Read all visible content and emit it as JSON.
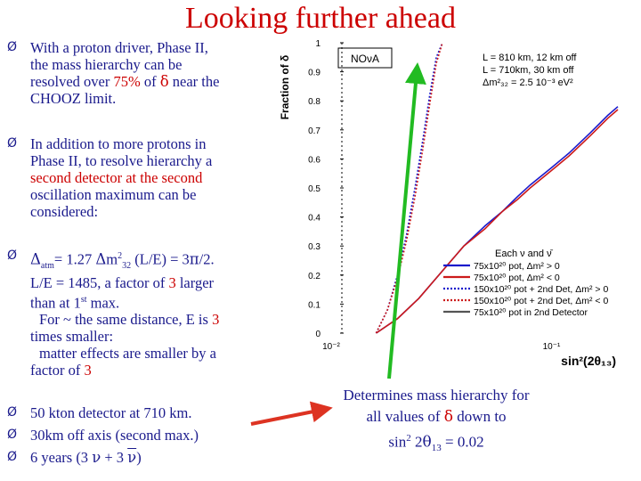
{
  "slide": {
    "title": "Looking further ahead"
  },
  "bullets": [
    {
      "lines": [
        "With a proton driver, Phase II,",
        "the mass hierarchy can be",
        "resolved over ",
        "75%",
        " of ",
        "δ",
        " near the",
        "CHOOZ limit."
      ]
    },
    {
      "l1": "In addition to more protons in",
      "l2": "Phase II, to resolve hierarchy a",
      "l3": "second detector at the second",
      "l4": "oscillation maximum can be",
      "l5": "considered:"
    },
    {
      "l1a": "Δ",
      "l1b": "atm",
      "l1c": "= 1.27 ",
      "l1d": "Δ",
      "l1e": "m",
      "l1f": "2",
      "l1g": "32",
      "l1h": " (L/E) = 3",
      "l1i": "π",
      "l1j": "/2.",
      "l2a": "L/E = 1485, a factor of ",
      "l2b": "3",
      "l2c": " larger",
      "l3a": "than at 1",
      "l3b": "st",
      "l3c": " max.",
      "l4": "For ~ the same distance, E is ",
      "l4b": "3",
      "l5": "times smaller:",
      "l6": "matter effects are smaller by a",
      "l7a": "factor of ",
      "l7b": "3"
    },
    {
      "text": "50 kton detector at 710 km."
    },
    {
      "text": "30km off axis (second max.)"
    },
    {
      "a": "6 years  (3 ",
      "nu": "ν",
      "b": " + 3 ",
      "nubar": "ν",
      "c": ")"
    }
  ],
  "bullet_marker": "Ø",
  "determines_note": {
    "l1": "Determines mass hierarchy for",
    "l2a": "all values of ",
    "l2b": "δ",
    "l2c": " down to",
    "l3a": "sin",
    "l3b": "2",
    "l3c": " 2",
    "l3d": "θ",
    "l3e": "13",
    "l3f": " = 0.02"
  },
  "colors": {
    "title": "#cc0000",
    "text": "#1a1a8c",
    "highlight": "#cc0000",
    "arrow_green": "#22bb22",
    "arrow_red": "#dd3322",
    "series_blue": "#1a1acc",
    "series_red": "#cc1a1a"
  },
  "chart_data": {
    "type": "line",
    "ylabel": "Fraction of δ",
    "xlabel": "sin²(2θ₁₃)",
    "x_scale": "log",
    "x_ticks": [
      "10⁻²",
      "10⁻¹"
    ],
    "y_ticks": [
      "0",
      "0.1",
      "0.2",
      "0.3",
      "0.4",
      "0.5",
      "0.6",
      "0.7",
      "0.8",
      "0.9",
      "1"
    ],
    "ylim": [
      0,
      1
    ],
    "xlim": [
      0.01,
      0.2
    ],
    "box_label": "NOνA",
    "info_lines": [
      "L = 810 km, 12 km off",
      "L = 710km, 30 km off",
      "Δm²₃₂ = 2.5 10⁻³ eV²"
    ],
    "legend_title": "Each ν and ν̄",
    "legend_placement": "bottom-right",
    "series": [
      {
        "name": "75x10²⁰ pot, Δm² > 0",
        "style": "solid",
        "color": "#1a1acc",
        "x": [
          0.016,
          0.02,
          0.025,
          0.03,
          0.04,
          0.05,
          0.06,
          0.07,
          0.08,
          0.1,
          0.12,
          0.15,
          0.18,
          0.2
        ],
        "y": [
          0.0,
          0.05,
          0.12,
          0.19,
          0.3,
          0.37,
          0.42,
          0.47,
          0.51,
          0.57,
          0.62,
          0.69,
          0.75,
          0.78
        ]
      },
      {
        "name": "75x10²⁰ pot, Δm² < 0",
        "style": "solid",
        "color": "#cc1a1a",
        "x": [
          0.016,
          0.02,
          0.025,
          0.03,
          0.04,
          0.05,
          0.06,
          0.07,
          0.08,
          0.1,
          0.12,
          0.15,
          0.18,
          0.2
        ],
        "y": [
          0.0,
          0.05,
          0.12,
          0.19,
          0.3,
          0.36,
          0.42,
          0.46,
          0.5,
          0.56,
          0.61,
          0.68,
          0.74,
          0.77
        ]
      },
      {
        "name": "150x10²⁰ pot + 2nd Det, Δm² > 0",
        "style": "dotted",
        "color": "#1a1acc",
        "x": [
          0.016,
          0.018,
          0.02,
          0.022,
          0.024,
          0.026,
          0.028,
          0.03,
          0.032
        ],
        "y": [
          0.0,
          0.08,
          0.2,
          0.34,
          0.5,
          0.66,
          0.82,
          0.95,
          1.0
        ]
      },
      {
        "name": "150x10²⁰ pot + 2nd Det, Δm² < 0",
        "style": "dotted",
        "color": "#cc1a1a",
        "x": [
          0.016,
          0.018,
          0.02,
          0.022,
          0.024,
          0.026,
          0.028,
          0.03,
          0.032
        ],
        "y": [
          0.0,
          0.08,
          0.19,
          0.32,
          0.47,
          0.63,
          0.79,
          0.93,
          1.0
        ]
      },
      {
        "name": "75x10²⁰ pot in 2nd Detector",
        "style": "solid",
        "color": "#555555",
        "x": [],
        "y": []
      }
    ]
  }
}
